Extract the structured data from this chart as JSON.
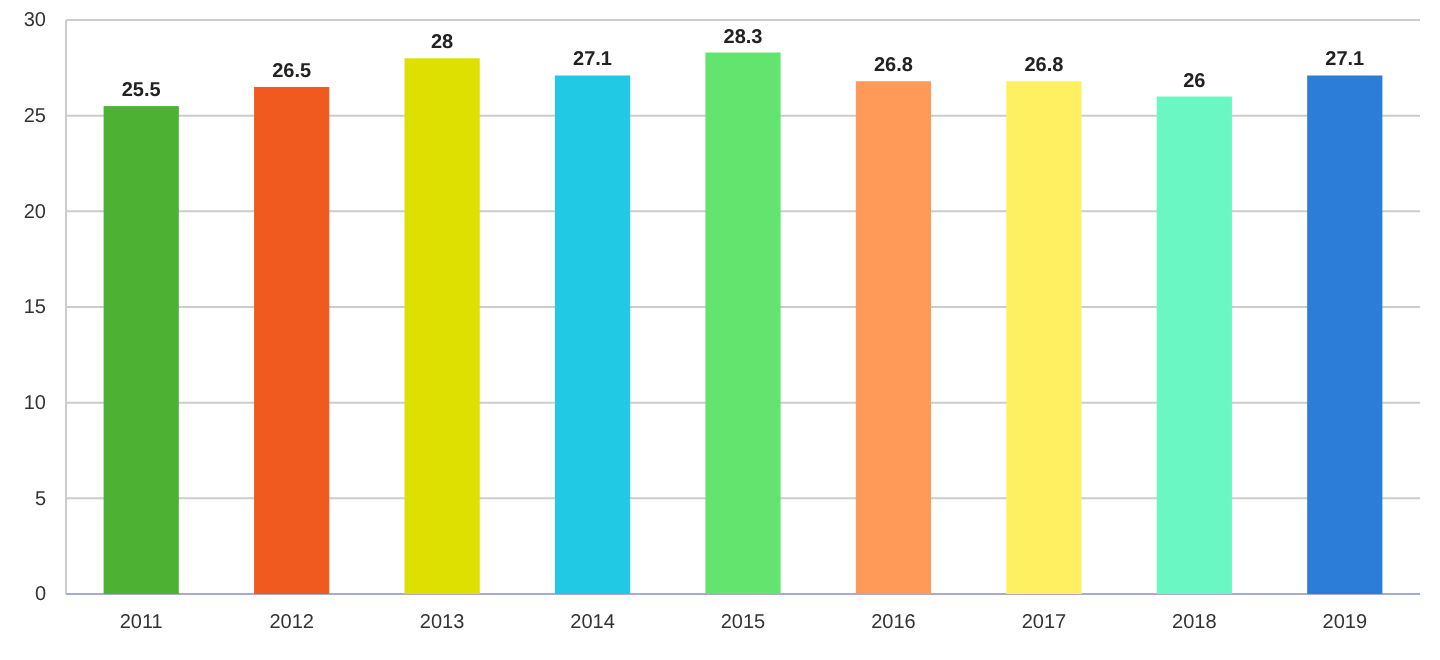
{
  "chart_data": {
    "type": "bar",
    "categories": [
      "2011",
      "2012",
      "2013",
      "2014",
      "2015",
      "2016",
      "2017",
      "2018",
      "2019"
    ],
    "values": [
      25.5,
      26.5,
      28,
      27.1,
      28.3,
      26.8,
      26.8,
      26,
      27.1
    ],
    "colors": [
      "#4db233",
      "#f05a1e",
      "#dde000",
      "#22c9e4",
      "#62e46e",
      "#ff9a58",
      "#fff062",
      "#6af7c4",
      "#2c7dd8"
    ],
    "ylim": [
      0,
      30
    ],
    "yticks": [
      0,
      5,
      10,
      15,
      20,
      25,
      30
    ],
    "grid": "y",
    "data_labels": true
  }
}
